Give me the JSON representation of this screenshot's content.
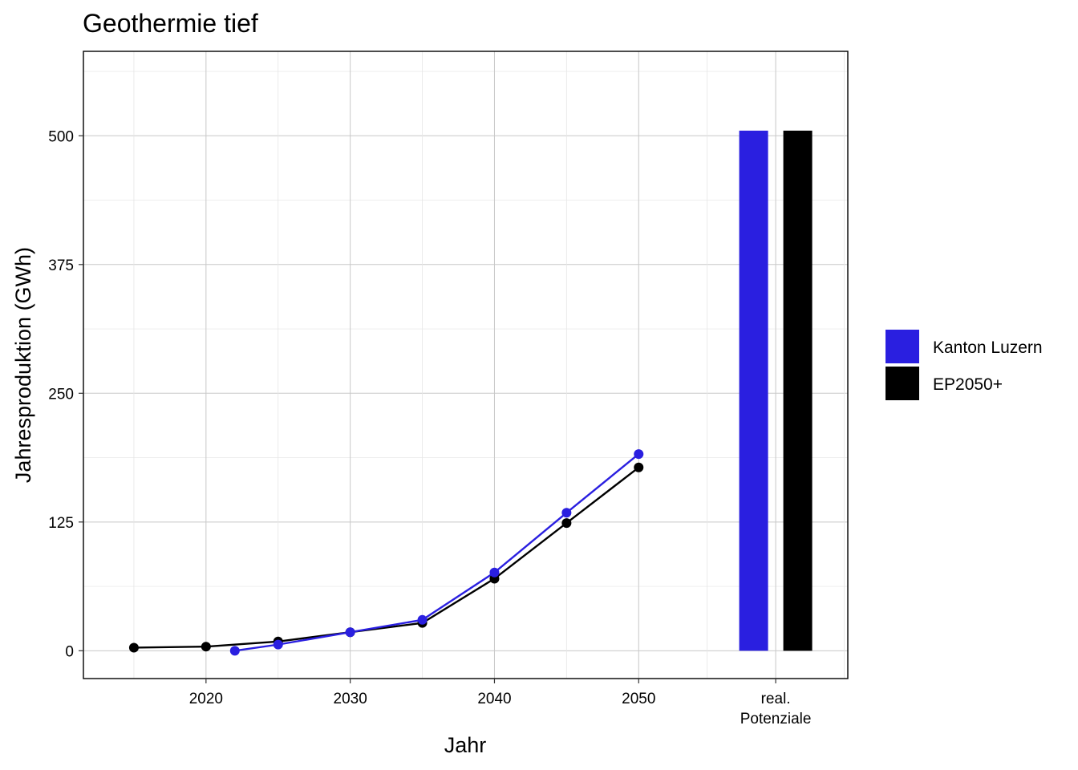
{
  "chart_data": {
    "type": "line",
    "title": "Geothermie tief",
    "xlabel": "Jahr",
    "ylabel": "Jahresproduktion (GWh)",
    "xlim": [
      2011.5,
      2064.5
    ],
    "ylim": [
      -27,
      582
    ],
    "x_ticks": [
      2020,
      2030,
      2040,
      2050
    ],
    "x_extra_label": "real.\nPotenziale",
    "y_ticks": [
      0,
      125,
      250,
      375,
      500
    ],
    "grid": true,
    "legend_position": "right",
    "series": [
      {
        "name": "Kanton Luzern",
        "color": "#2a1fe0",
        "x": [
          2022,
          2025,
          2030,
          2035,
          2040,
          2045,
          2050
        ],
        "y": [
          0,
          6,
          18,
          30,
          76,
          134,
          191
        ]
      },
      {
        "name": "EP2050+",
        "color": "#000000",
        "x": [
          2015,
          2020,
          2025,
          2030,
          2035,
          2040,
          2045,
          2050
        ],
        "y": [
          3,
          4,
          9,
          18,
          27,
          70,
          124,
          178
        ]
      }
    ],
    "potential_bars": [
      {
        "name": "Kanton Luzern",
        "value": 505,
        "color": "#2a1fe0"
      },
      {
        "name": "EP2050+",
        "value": 505,
        "color": "#000000"
      }
    ]
  }
}
